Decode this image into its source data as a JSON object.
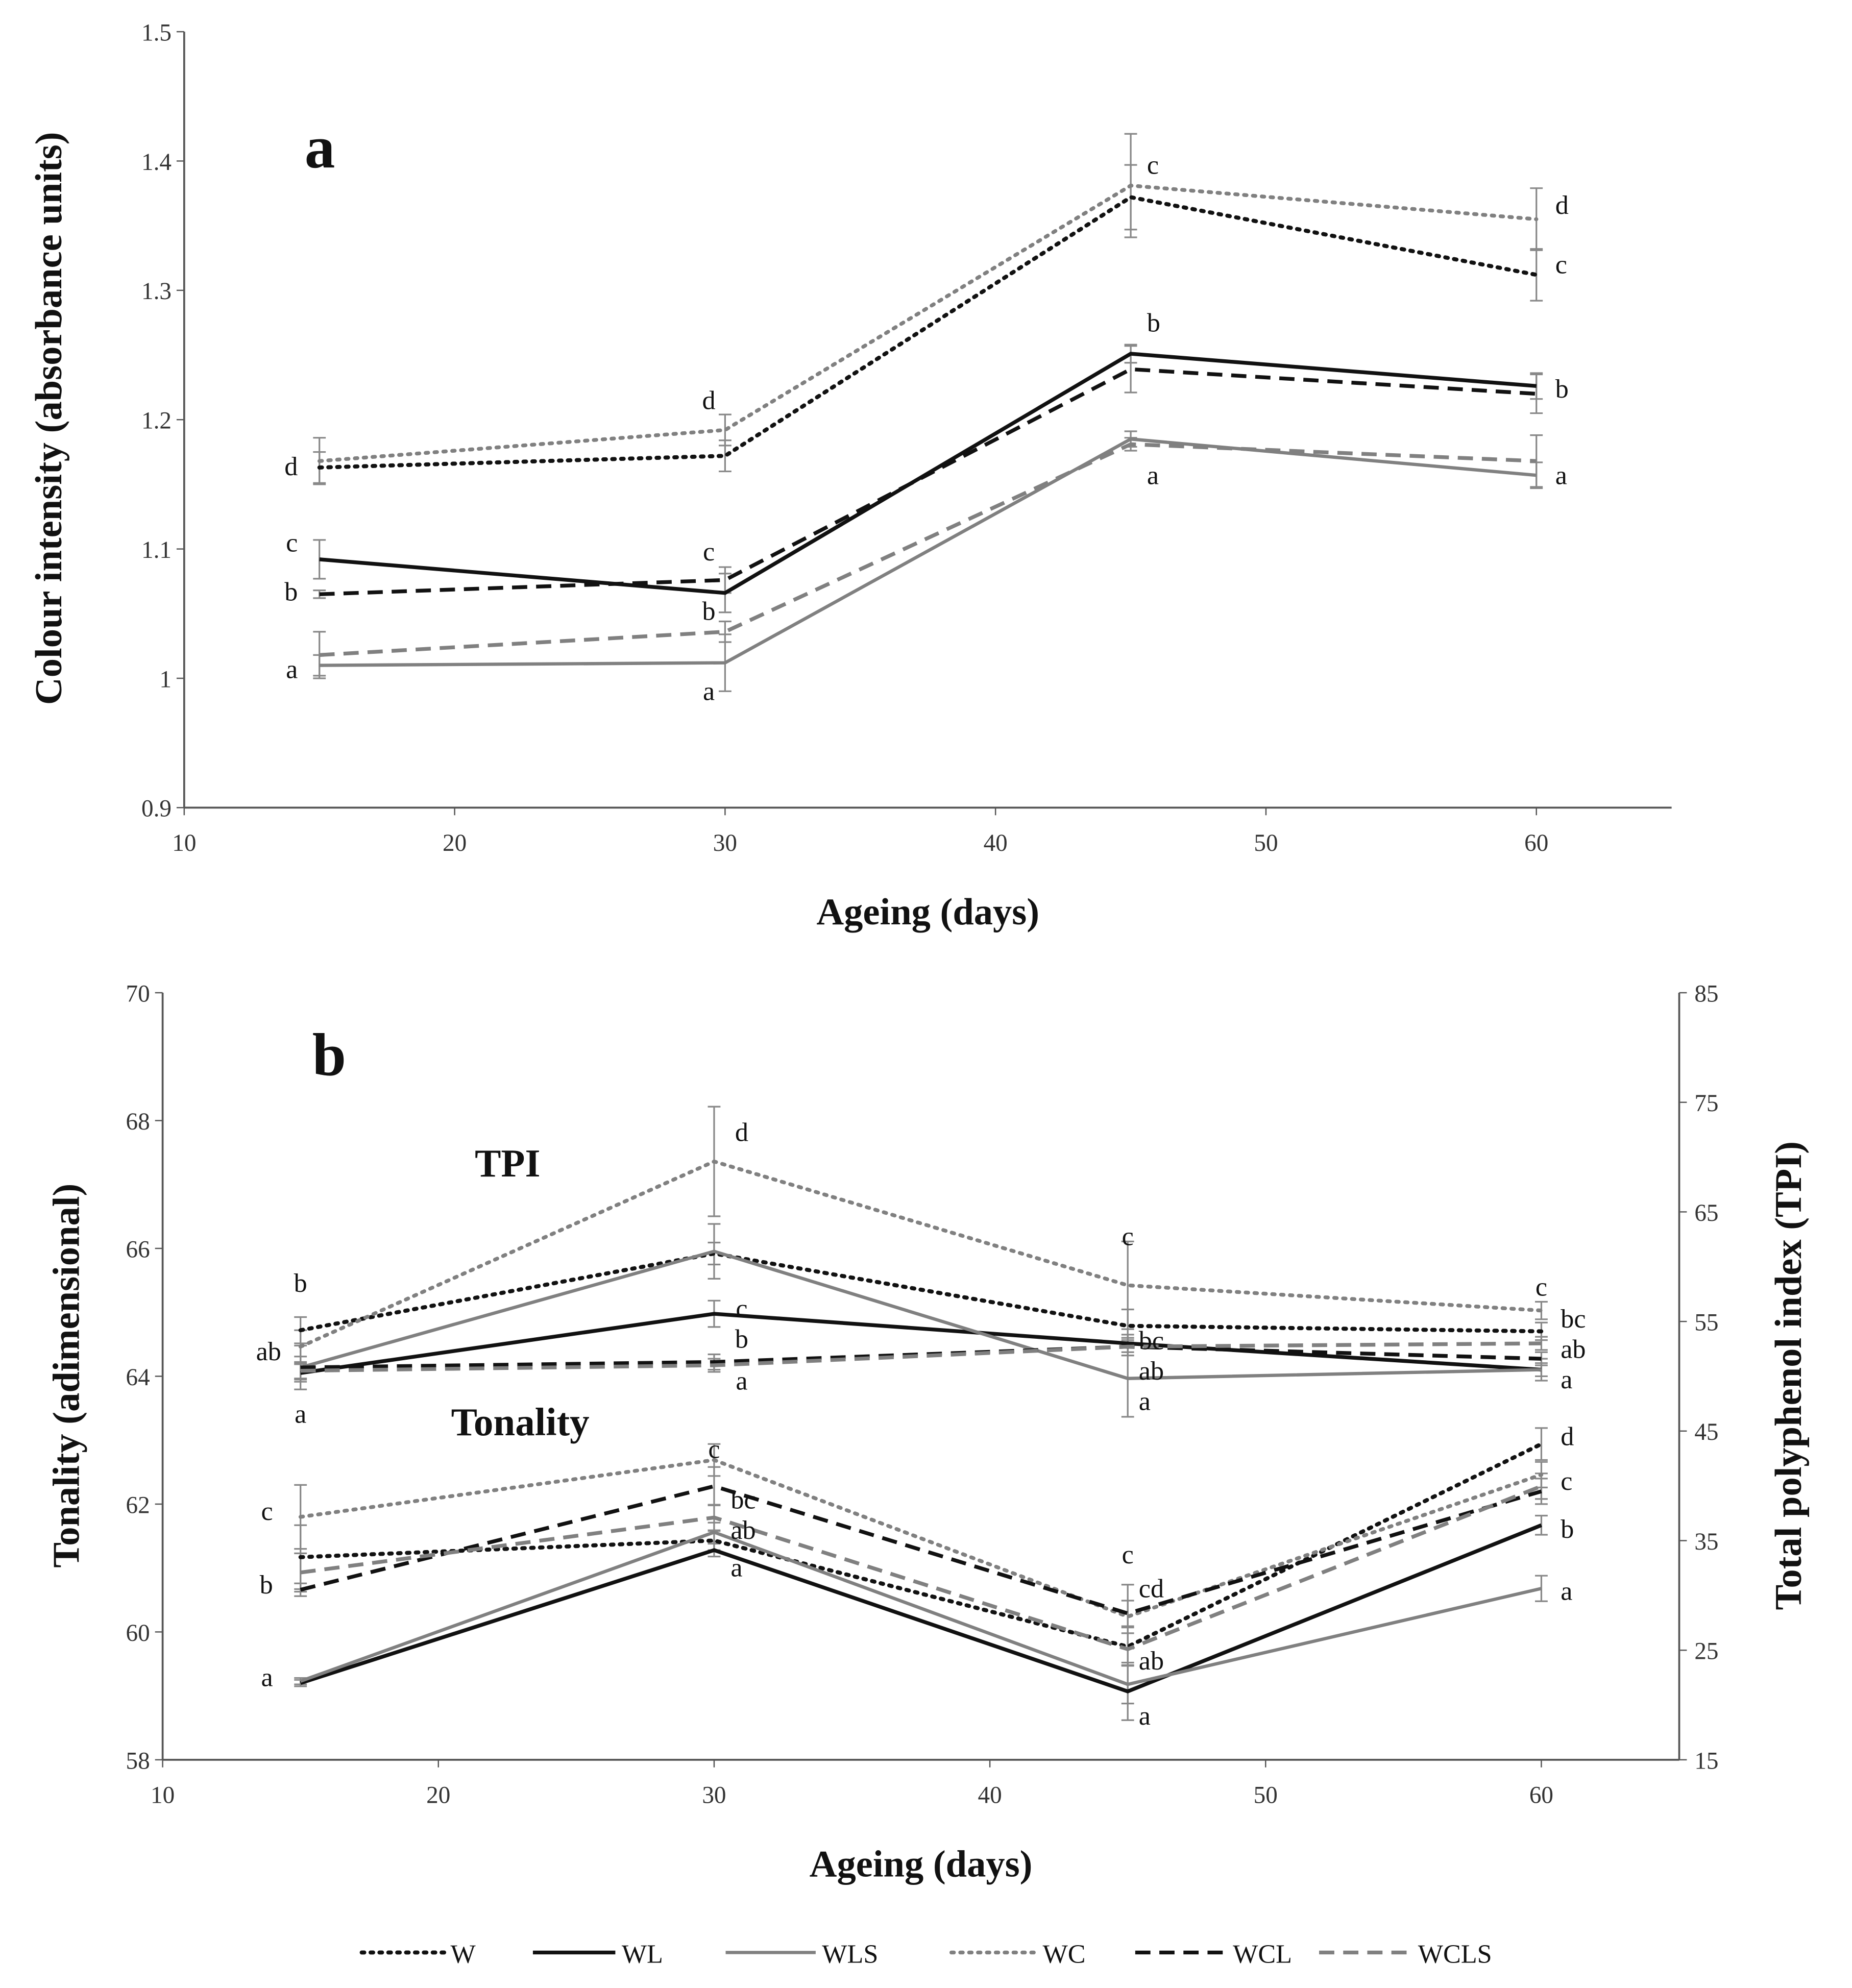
{
  "legend": [
    "W",
    "WL",
    "WLS",
    "WC",
    "WCL",
    "WCLS"
  ],
  "styles": {
    "W": {
      "color": "#111111",
      "dash": "2 5",
      "width": 3.2
    },
    "WL": {
      "color": "#111111",
      "dash": "",
      "width": 3
    },
    "WLS": {
      "color": "#808080",
      "dash": "",
      "width": 2.6
    },
    "WC": {
      "color": "#808080",
      "dash": "2 5",
      "width": 3
    },
    "WCL": {
      "color": "#111111",
      "dash": "12 7",
      "width": 3
    },
    "WCLS": {
      "color": "#808080",
      "dash": "12 7",
      "width": 3
    }
  },
  "errorbar_color": "#888888",
  "chart_data": [
    {
      "type": "line",
      "panel_label": "a",
      "xlabel": "Ageing (days)",
      "ylabel": "Colour intensity (absorbance units)",
      "xlim": [
        10,
        65
      ],
      "xticks": [
        10,
        20,
        30,
        40,
        50,
        60
      ],
      "ylim": [
        0.9,
        1.5
      ],
      "yticks": [
        "0.9",
        "1",
        "1.1",
        "1.2",
        "1.3",
        "1.4",
        "1.5"
      ],
      "x": [
        15,
        30,
        45,
        60
      ],
      "series": [
        {
          "name": "W",
          "values": [
            1.163,
            1.172,
            1.372,
            1.312
          ],
          "err": [
            0.012,
            0.012,
            0.025,
            0.02
          ]
        },
        {
          "name": "WL",
          "values": [
            1.092,
            1.066,
            1.251,
            1.226
          ],
          "err": [
            0.015,
            0.015,
            0.007,
            0.01
          ]
        },
        {
          "name": "WLS",
          "values": [
            1.01,
            1.012,
            1.185,
            1.157
          ],
          "err": [
            0.008,
            0.022,
            0.006,
            0.01
          ]
        },
        {
          "name": "WC",
          "values": [
            1.168,
            1.192,
            1.381,
            1.355
          ],
          "err": [
            0.018,
            0.012,
            0.04,
            0.024
          ]
        },
        {
          "name": "WCL",
          "values": [
            1.065,
            1.076,
            1.239,
            1.22
          ],
          "err": [
            0.003,
            0.01,
            0.018,
            0.015
          ]
        },
        {
          "name": "WCLS",
          "values": [
            1.018,
            1.036,
            1.181,
            1.168
          ],
          "err": [
            0.018,
            0.008,
            0.005,
            0.02
          ]
        }
      ],
      "annotations": [
        {
          "x": 14.2,
          "y": 1.164,
          "text": "d",
          "anchor": "end"
        },
        {
          "x": 14.2,
          "y": 1.105,
          "text": "c",
          "anchor": "end"
        },
        {
          "x": 14.2,
          "y": 1.067,
          "text": "b",
          "anchor": "end"
        },
        {
          "x": 14.2,
          "y": 1.007,
          "text": "a",
          "anchor": "end"
        },
        {
          "x": 29.4,
          "y": 1.215,
          "text": "d",
          "anchor": "middle"
        },
        {
          "x": 29.4,
          "y": 1.098,
          "text": "c",
          "anchor": "middle"
        },
        {
          "x": 29.4,
          "y": 1.052,
          "text": "b",
          "anchor": "middle"
        },
        {
          "x": 29.4,
          "y": 0.99,
          "text": "a",
          "anchor": "middle"
        },
        {
          "x": 45.6,
          "y": 1.397,
          "text": "c",
          "anchor": "start"
        },
        {
          "x": 45.6,
          "y": 1.275,
          "text": "b",
          "anchor": "start"
        },
        {
          "x": 45.6,
          "y": 1.157,
          "text": "a",
          "anchor": "start"
        },
        {
          "x": 60.7,
          "y": 1.366,
          "text": "d",
          "anchor": "start"
        },
        {
          "x": 60.7,
          "y": 1.32,
          "text": "c",
          "anchor": "start"
        },
        {
          "x": 60.7,
          "y": 1.224,
          "text": "b",
          "anchor": "start"
        },
        {
          "x": 60.7,
          "y": 1.157,
          "text": "a",
          "anchor": "start"
        }
      ]
    },
    {
      "type": "line",
      "panel_label": "b",
      "xlabel": "Ageing (days)",
      "ylabel": "Tonality (adimensional)",
      "y2label": "Total polyphenol index (TPI)",
      "xlim": [
        10,
        65
      ],
      "xticks": [
        10,
        20,
        30,
        40,
        50,
        60
      ],
      "ylim": [
        58,
        70
      ],
      "yticks": [
        "58",
        "60",
        "62",
        "64",
        "66",
        "68",
        "70"
      ],
      "y2lim": [
        15,
        85
      ],
      "y2ticks": [
        "15",
        "25",
        "35",
        "45",
        "55",
        "65",
        "75",
        "85"
      ],
      "group_labels": [
        "TPI",
        "Tonality"
      ],
      "x": [
        15,
        30,
        45,
        60
      ],
      "tpi_series": [
        {
          "name": "W",
          "values": [
            54.2,
            61.2,
            54.6,
            54.1
          ],
          "err": [
            1.2,
            1.0,
            1.5,
            0.8
          ]
        },
        {
          "name": "WL",
          "values": [
            50.3,
            55.7,
            53.0,
            50.6
          ],
          "err": [
            0.8,
            1.2,
            0.8,
            0.6
          ]
        },
        {
          "name": "WLS",
          "values": [
            50.8,
            61.4,
            49.8,
            50.6
          ],
          "err": [
            2.0,
            2.5,
            3.5,
            1.0
          ]
        },
        {
          "name": "WC",
          "values": [
            52.7,
            69.6,
            58.3,
            56.0
          ],
          "err": [
            1.5,
            5.0,
            4.0,
            0.8
          ]
        },
        {
          "name": "WCL",
          "values": [
            50.8,
            51.3,
            52.7,
            51.6
          ],
          "err": [
            1.0,
            0.7,
            0.8,
            0.6
          ]
        },
        {
          "name": "WCLS",
          "values": [
            50.5,
            51.0,
            52.7,
            53.0
          ],
          "err": [
            0.8,
            0.6,
            0.8,
            0.6
          ]
        }
      ],
      "tonality_series": [
        {
          "name": "W",
          "values": [
            61.17,
            61.43,
            59.77,
            62.94
          ],
          "err": [
            0.5,
            0.15,
            0.3,
            0.25
          ]
        },
        {
          "name": "WL",
          "values": [
            59.2,
            61.28,
            59.07,
            61.67
          ],
          "err": [
            0.05,
            0.1,
            0.45,
            0.15
          ]
        },
        {
          "name": "WLS",
          "values": [
            59.23,
            61.56,
            59.18,
            60.68
          ],
          "err": [
            0.05,
            0.15,
            0.3,
            0.2
          ]
        },
        {
          "name": "WC",
          "values": [
            61.8,
            62.69,
            60.24,
            62.46
          ],
          "err": [
            0.5,
            0.25,
            0.5,
            0.2
          ]
        },
        {
          "name": "WCL",
          "values": [
            60.66,
            62.28,
            60.29,
            62.2
          ],
          "err": [
            0.1,
            0.3,
            0.2,
            0.2
          ]
        },
        {
          "name": "WCLS",
          "values": [
            60.93,
            61.79,
            59.73,
            62.28
          ],
          "err": [
            0.3,
            0.2,
            0.25,
            0.2
          ]
        }
      ],
      "annotations": [
        {
          "x": 15,
          "y": 65.46,
          "text": "b",
          "anchor": "middle"
        },
        {
          "x": 14.3,
          "y": 64.39,
          "text": "ab",
          "anchor": "end"
        },
        {
          "x": 15,
          "y": 63.41,
          "text": "a",
          "anchor": "middle"
        },
        {
          "x": 31,
          "y": 67.82,
          "text": "d",
          "anchor": "middle"
        },
        {
          "x": 31,
          "y": 65.06,
          "text": "c",
          "anchor": "middle"
        },
        {
          "x": 31,
          "y": 64.66,
          "text": "b",
          "anchor": "middle"
        },
        {
          "x": 31,
          "y": 63.93,
          "text": "a",
          "anchor": "middle"
        },
        {
          "x": 45,
          "y": 66.19,
          "text": "c",
          "anchor": "middle"
        },
        {
          "x": 45.4,
          "y": 64.56,
          "text": "bc",
          "anchor": "start"
        },
        {
          "x": 45.4,
          "y": 64.3,
          "text": "ab",
          "anchor": "start"
        },
        {
          "x": 45.4,
          "y": 63.65,
          "text": "a",
          "anchor": "start"
        },
        {
          "x": 60,
          "y": 65.4,
          "text": "c",
          "anchor": "middle"
        },
        {
          "x": 60.7,
          "y": 64.9,
          "text": "bc",
          "anchor": "start"
        },
        {
          "x": 60.7,
          "y": 64.5,
          "text": "ab",
          "anchor": "start"
        },
        {
          "x": 60.7,
          "y": 63.97,
          "text": "a",
          "anchor": "start"
        },
        {
          "x": 14,
          "y": 61.89,
          "text": "c",
          "anchor": "end"
        },
        {
          "x": 14,
          "y": 60.74,
          "text": "b",
          "anchor": "end"
        },
        {
          "x": 14,
          "y": 59.29,
          "text": "a",
          "anchor": "end"
        },
        {
          "x": 30,
          "y": 62.86,
          "text": "c",
          "anchor": "middle"
        },
        {
          "x": 30.6,
          "y": 62.07,
          "text": "bc",
          "anchor": "start"
        },
        {
          "x": 30.6,
          "y": 61.63,
          "text": "ab",
          "anchor": "start"
        },
        {
          "x": 30.6,
          "y": 61.01,
          "text": "a",
          "anchor": "start"
        },
        {
          "x": 45,
          "y": 61.21,
          "text": "c",
          "anchor": "middle"
        },
        {
          "x": 45.4,
          "y": 60.68,
          "text": "cd",
          "anchor": "start"
        },
        {
          "x": 45.4,
          "y": 59.55,
          "text": "ab",
          "anchor": "start"
        },
        {
          "x": 45.4,
          "y": 58.69,
          "text": "a",
          "anchor": "start"
        },
        {
          "x": 60.7,
          "y": 63.06,
          "text": "d",
          "anchor": "start"
        },
        {
          "x": 60.7,
          "y": 62.36,
          "text": "c",
          "anchor": "start"
        },
        {
          "x": 60.7,
          "y": 61.61,
          "text": "b",
          "anchor": "start"
        },
        {
          "x": 60.7,
          "y": 60.64,
          "text": "a",
          "anchor": "start"
        }
      ]
    }
  ]
}
